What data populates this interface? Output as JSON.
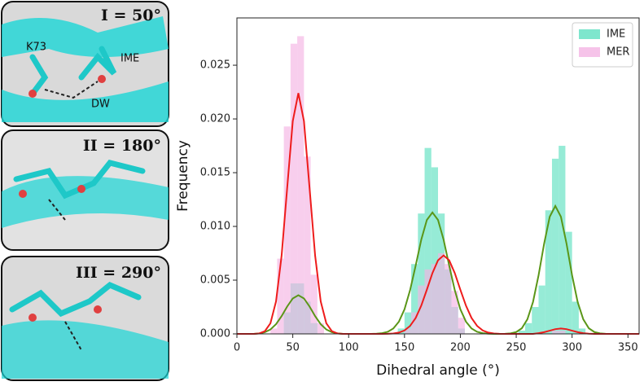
{
  "panels": [
    {
      "title": "I = 50°",
      "labels": [
        "K73",
        "IME",
        "DW"
      ]
    },
    {
      "title": "II = 180°"
    },
    {
      "title": "III = 290°"
    }
  ],
  "chart_data": {
    "type": "histogram",
    "xlabel": "Dihedral angle (°)",
    "ylabel": "Frequency",
    "xlim": [
      0,
      360
    ],
    "ylim": [
      0,
      0.0294
    ],
    "xticks": [
      0,
      50,
      100,
      150,
      200,
      250,
      300,
      350
    ],
    "yticks": [
      {
        "value": 0,
        "label": "0.000"
      },
      {
        "value": 0.005,
        "label": "0.005"
      },
      {
        "value": 0.01,
        "label": "0.010"
      },
      {
        "value": 0.015,
        "label": "0.015"
      },
      {
        "value": 0.02,
        "label": "0.020"
      },
      {
        "value": 0.025,
        "label": "0.025"
      }
    ],
    "legend": "upper right",
    "bins": [
      0,
      6,
      12,
      18,
      24,
      30,
      36,
      42,
      48,
      54,
      60,
      66,
      72,
      78,
      84,
      90,
      96,
      102,
      108,
      114,
      120,
      126,
      132,
      138,
      144,
      150,
      156,
      162,
      168,
      174,
      180,
      186,
      192,
      198,
      204,
      210,
      216,
      222,
      228,
      234,
      240,
      246,
      252,
      258,
      264,
      270,
      276,
      282,
      288,
      294,
      300,
      306,
      312,
      318,
      324,
      330,
      336,
      342,
      348,
      354,
      360
    ],
    "series": [
      {
        "name": "IME",
        "color": "#5ee0c0",
        "values": [
          0,
          0,
          0,
          0,
          0,
          0,
          0,
          0.002,
          0.0047,
          0.0047,
          0.003,
          0.001,
          0,
          0,
          0,
          0,
          0,
          0,
          0,
          0,
          0,
          0,
          0,
          0,
          0.0005,
          0.002,
          0.0065,
          0.0112,
          0.0173,
          0.0155,
          0.0112,
          0.006,
          0.0025,
          0.0005,
          0,
          0,
          0,
          0,
          0,
          0,
          0,
          0,
          0.0003,
          0.001,
          0.0025,
          0.0045,
          0.0115,
          0.0163,
          0.0175,
          0.0095,
          0.003,
          0.0005,
          0,
          0,
          0,
          0,
          0,
          0,
          0,
          0
        ]
      },
      {
        "name": "MER",
        "color": "#f4b4e4",
        "values": [
          0,
          0,
          0,
          0,
          0,
          0.0005,
          0.007,
          0.0193,
          0.027,
          0.0277,
          0.0165,
          0.0055,
          0.001,
          0,
          0,
          0,
          0,
          0,
          0,
          0,
          0,
          0,
          0,
          0,
          0,
          0.0005,
          0.002,
          0.0045,
          0.006,
          0.0065,
          0.0075,
          0.0065,
          0.004,
          0.0015,
          0,
          0,
          0,
          0,
          0,
          0,
          0,
          0,
          0,
          0,
          0,
          0,
          0,
          0.0003,
          0.0003,
          0,
          0,
          0,
          0,
          0,
          0,
          0,
          0,
          0,
          0,
          0
        ]
      }
    ],
    "curve_x": [
      0,
      5,
      10,
      15,
      20,
      25,
      30,
      35,
      40,
      45,
      50,
      55,
      60,
      65,
      70,
      75,
      80,
      85,
      90,
      95,
      100,
      105,
      110,
      115,
      120,
      125,
      130,
      135,
      140,
      145,
      150,
      155,
      160,
      165,
      170,
      175,
      180,
      185,
      190,
      195,
      200,
      205,
      210,
      215,
      220,
      225,
      230,
      235,
      240,
      245,
      250,
      255,
      260,
      265,
      270,
      275,
      280,
      285,
      290,
      295,
      300,
      305,
      310,
      315,
      320,
      325,
      330,
      335,
      340,
      345,
      350,
      355,
      360
    ],
    "curves": [
      {
        "color": "#5a9618",
        "values": [
          0,
          0,
          0,
          0,
          5e-05,
          0.00016,
          0.00041,
          0.0009,
          0.00165,
          0.00255,
          0.0033,
          0.0036,
          0.0033,
          0.00255,
          0.00165,
          0.0009,
          0.00041,
          0.00016,
          5e-05,
          0,
          0,
          0,
          0,
          0,
          0,
          2e-05,
          7e-05,
          0.00019,
          0.0005,
          0.00114,
          0.00229,
          0.00407,
          0.00636,
          0.00876,
          0.0106,
          0.0113,
          0.0106,
          0.00876,
          0.00636,
          0.00407,
          0.00229,
          0.00114,
          0.0005,
          0.00019,
          7e-05,
          2e-05,
          0,
          0,
          1e-05,
          5e-05,
          0.00017,
          0.00052,
          0.00136,
          0.00296,
          0.00545,
          0.00841,
          0.0109,
          0.0119,
          0.0109,
          0.00841,
          0.00545,
          0.00296,
          0.00136,
          0.00052,
          0.00017,
          5e-05,
          1e-05,
          0,
          0,
          0,
          0,
          0,
          0
        ]
      },
      {
        "color": "#ee1c1c",
        "values": [
          0,
          0,
          0,
          0,
          4e-05,
          0.00025,
          0.00099,
          0.00302,
          0.00728,
          0.0136,
          0.0198,
          0.0224,
          0.0198,
          0.0136,
          0.00728,
          0.00302,
          0.00099,
          0.00025,
          4e-05,
          0,
          0,
          0,
          0,
          0,
          0,
          0,
          0,
          1e-05,
          4e-05,
          0.00012,
          0.00032,
          0.00074,
          0.00148,
          0.00263,
          0.00411,
          0.00566,
          0.00685,
          0.0073,
          0.00685,
          0.00566,
          0.00411,
          0.00263,
          0.00148,
          0.00074,
          0.00032,
          0.00012,
          4e-05,
          1e-05,
          0,
          0,
          0,
          0,
          0,
          0,
          7e-05,
          0.00016,
          0.0003,
          0.00044,
          0.0005,
          0.00044,
          0.0003,
          0.00016,
          7e-05,
          2e-05,
          0,
          0,
          0,
          0,
          0,
          0,
          0,
          0,
          0
        ]
      }
    ]
  }
}
